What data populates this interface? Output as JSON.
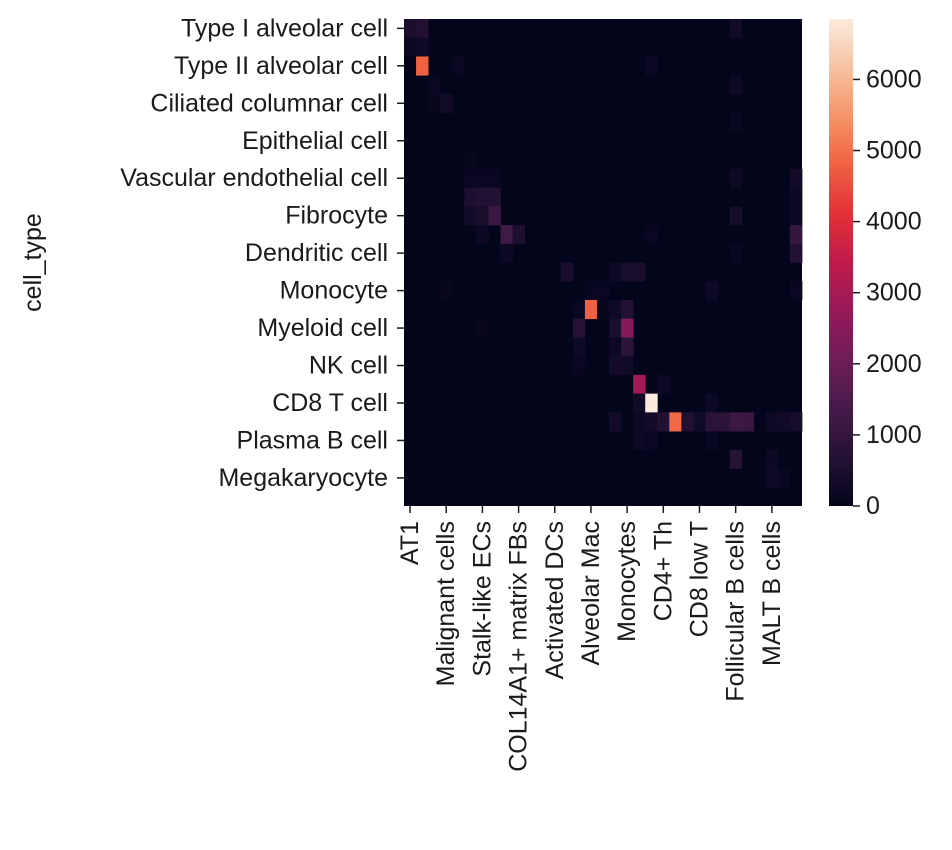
{
  "chart_data": {
    "type": "heatmap",
    "title": "",
    "ylabel": "cell_type",
    "xlabel": "",
    "rows": [
      "Type I alveolar cell",
      "Type II alveolar cell",
      "Ciliated columnar cell",
      "Epithelial cell",
      "Vascular endothelial cell",
      "Fibrocyte",
      "Dendritic cell",
      "Monocyte",
      "Myeloid cell",
      "NK cell",
      "CD8 T cell",
      "Plasma B cell",
      "Megakaryocyte"
    ],
    "n_rows": 26,
    "n_cols": 33,
    "x_tick_labels": [
      "AT1",
      "Malignant cells",
      "Stalk-like ECs",
      "COL14A1+ matrix FBs",
      "Activated DCs",
      "Alveolar Mac",
      "Monocytes",
      "CD4+ Th",
      "CD8 low T",
      "Follicular B cells",
      "MALT B cells"
    ],
    "x_tick_columns": [
      0,
      3,
      6,
      9,
      12,
      15,
      18,
      21,
      24,
      27,
      30
    ],
    "y_tick_rows": [
      0,
      2,
      4,
      6,
      8,
      10,
      12,
      14,
      16,
      18,
      20,
      22,
      24
    ],
    "colorbar": {
      "min": 0,
      "max": 6850,
      "ticks": [
        0,
        1000,
        2000,
        3000,
        4000,
        5000,
        6000
      ]
    },
    "cells": [
      {
        "row": 0,
        "col": 0,
        "value": 500
      },
      {
        "row": 0,
        "col": 1,
        "value": 650
      },
      {
        "row": 0,
        "col": 27,
        "value": 350
      },
      {
        "row": 1,
        "col": 0,
        "value": 200
      },
      {
        "row": 1,
        "col": 1,
        "value": 250
      },
      {
        "row": 2,
        "col": 1,
        "value": 4800
      },
      {
        "row": 2,
        "col": 4,
        "value": 150
      },
      {
        "row": 2,
        "col": 20,
        "value": 200
      },
      {
        "row": 3,
        "col": 2,
        "value": 150
      },
      {
        "row": 3,
        "col": 27,
        "value": 250
      },
      {
        "row": 4,
        "col": 2,
        "value": 100
      },
      {
        "row": 4,
        "col": 3,
        "value": 300
      },
      {
        "row": 5,
        "col": 27,
        "value": 150
      },
      {
        "row": 7,
        "col": 5,
        "value": 100
      },
      {
        "row": 8,
        "col": 5,
        "value": 150
      },
      {
        "row": 8,
        "col": 6,
        "value": 150
      },
      {
        "row": 8,
        "col": 7,
        "value": 150
      },
      {
        "row": 8,
        "col": 27,
        "value": 250
      },
      {
        "row": 8,
        "col": 32,
        "value": 350
      },
      {
        "row": 9,
        "col": 5,
        "value": 550
      },
      {
        "row": 9,
        "col": 6,
        "value": 650
      },
      {
        "row": 9,
        "col": 7,
        "value": 650
      },
      {
        "row": 9,
        "col": 32,
        "value": 200
      },
      {
        "row": 10,
        "col": 5,
        "value": 300
      },
      {
        "row": 10,
        "col": 6,
        "value": 450
      },
      {
        "row": 10,
        "col": 7,
        "value": 1100
      },
      {
        "row": 10,
        "col": 27,
        "value": 400
      },
      {
        "row": 10,
        "col": 32,
        "value": 200
      },
      {
        "row": 11,
        "col": 6,
        "value": 200
      },
      {
        "row": 11,
        "col": 8,
        "value": 1250
      },
      {
        "row": 11,
        "col": 9,
        "value": 550
      },
      {
        "row": 11,
        "col": 20,
        "value": 150
      },
      {
        "row": 11,
        "col": 32,
        "value": 1000
      },
      {
        "row": 12,
        "col": 8,
        "value": 200
      },
      {
        "row": 12,
        "col": 27,
        "value": 150
      },
      {
        "row": 12,
        "col": 32,
        "value": 650
      },
      {
        "row": 13,
        "col": 13,
        "value": 500
      },
      {
        "row": 13,
        "col": 17,
        "value": 200
      },
      {
        "row": 13,
        "col": 18,
        "value": 450
      },
      {
        "row": 13,
        "col": 19,
        "value": 450
      },
      {
        "row": 14,
        "col": 3,
        "value": 100
      },
      {
        "row": 14,
        "col": 15,
        "value": 150
      },
      {
        "row": 14,
        "col": 16,
        "value": 150
      },
      {
        "row": 14,
        "col": 25,
        "value": 250
      },
      {
        "row": 14,
        "col": 32,
        "value": 150
      },
      {
        "row": 15,
        "col": 14,
        "value": 150
      },
      {
        "row": 15,
        "col": 15,
        "value": 4800
      },
      {
        "row": 15,
        "col": 16,
        "value": 100
      },
      {
        "row": 15,
        "col": 17,
        "value": 250
      },
      {
        "row": 15,
        "col": 18,
        "value": 650
      },
      {
        "row": 16,
        "col": 6,
        "value": 100
      },
      {
        "row": 16,
        "col": 14,
        "value": 700
      },
      {
        "row": 16,
        "col": 17,
        "value": 450
      },
      {
        "row": 16,
        "col": 18,
        "value": 2400
      },
      {
        "row": 17,
        "col": 14,
        "value": 250
      },
      {
        "row": 17,
        "col": 17,
        "value": 200
      },
      {
        "row": 17,
        "col": 18,
        "value": 850
      },
      {
        "row": 18,
        "col": 14,
        "value": 150
      },
      {
        "row": 18,
        "col": 17,
        "value": 350
      },
      {
        "row": 18,
        "col": 18,
        "value": 300
      },
      {
        "row": 19,
        "col": 19,
        "value": 2900
      },
      {
        "row": 19,
        "col": 21,
        "value": 200
      },
      {
        "row": 20,
        "col": 19,
        "value": 300
      },
      {
        "row": 20,
        "col": 20,
        "value": 6850
      },
      {
        "row": 20,
        "col": 25,
        "value": 200
      },
      {
        "row": 21,
        "col": 17,
        "value": 350
      },
      {
        "row": 21,
        "col": 19,
        "value": 200
      },
      {
        "row": 21,
        "col": 20,
        "value": 350
      },
      {
        "row": 21,
        "col": 21,
        "value": 650
      },
      {
        "row": 21,
        "col": 22,
        "value": 4900
      },
      {
        "row": 21,
        "col": 23,
        "value": 650
      },
      {
        "row": 21,
        "col": 24,
        "value": 300
      },
      {
        "row": 21,
        "col": 25,
        "value": 800
      },
      {
        "row": 21,
        "col": 26,
        "value": 850
      },
      {
        "row": 21,
        "col": 27,
        "value": 1200
      },
      {
        "row": 21,
        "col": 28,
        "value": 1100
      },
      {
        "row": 21,
        "col": 30,
        "value": 250
      },
      {
        "row": 21,
        "col": 31,
        "value": 300
      },
      {
        "row": 21,
        "col": 32,
        "value": 400
      },
      {
        "row": 22,
        "col": 19,
        "value": 200
      },
      {
        "row": 22,
        "col": 20,
        "value": 150
      },
      {
        "row": 22,
        "col": 25,
        "value": 150
      },
      {
        "row": 23,
        "col": 27,
        "value": 750
      },
      {
        "row": 23,
        "col": 30,
        "value": 200
      },
      {
        "row": 24,
        "col": 30,
        "value": 250
      },
      {
        "row": 24,
        "col": 31,
        "value": 150
      }
    ]
  }
}
